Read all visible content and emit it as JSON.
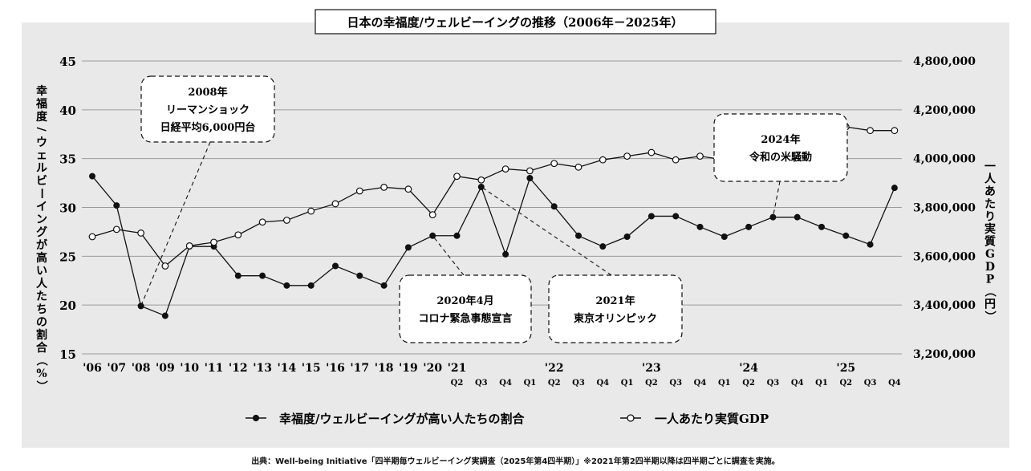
{
  "chart_data": {
    "type": "line",
    "title": "日本の幸福度/ウェルビーイングの推移（2006年－2025年）",
    "ylabel_left": "幸福度/ウェルビーイングが高い人たちの割合（%）",
    "ylabel_right": "一人あたり実質GDP（円）",
    "y_left_ticks": [
      "45",
      "40",
      "35",
      "30",
      "25",
      "20",
      "15"
    ],
    "y_left_range": [
      15,
      45
    ],
    "y_right_ticks": [
      "4,800,000",
      "4,200,000",
      "4,000,000",
      "3,800,000",
      "3,600,000",
      "3,400,000",
      "3,200,000"
    ],
    "y_right_range": [
      3200000,
      4800000
    ],
    "grid": true,
    "x_labels": [
      "'06",
      "'07",
      "'08",
      "'09",
      "'10",
      "'11",
      "'12",
      "'13",
      "'14",
      "'15",
      "'16",
      "'17",
      "'18",
      "'19",
      "'20",
      "'21",
      "",
      "",
      "",
      "'22",
      "",
      "",
      "",
      "'23",
      "",
      "",
      "",
      "'24",
      "",
      "",
      "",
      "'25",
      "",
      "",
      ""
    ],
    "x_quarters": [
      "",
      "",
      "",
      "",
      "",
      "",
      "",
      "",
      "",
      "",
      "",
      "",
      "",
      "",
      "",
      "Q2",
      "Q3",
      "Q4",
      "Q1",
      "Q2",
      "Q3",
      "Q4",
      "Q1",
      "Q2",
      "Q3",
      "Q4",
      "Q1",
      "Q2",
      "Q3",
      "Q4",
      "Q1",
      "Q2",
      "Q3",
      "Q4"
    ],
    "series": [
      {
        "name": "幸福度/ウェルビーイングが高い人たちの割合",
        "axis": "left",
        "marker": "filled",
        "values": [
          33.2,
          30.2,
          19.9,
          18.9,
          26.0,
          26.0,
          23.0,
          23.0,
          22.0,
          22.0,
          24.0,
          23.0,
          22.0,
          25.9,
          27.1,
          27.1,
          32.1,
          25.2,
          33.0,
          30.1,
          27.1,
          26.0,
          27.0,
          29.1,
          29.1,
          28.0,
          27.0,
          28.0,
          29.0,
          29.0,
          28.0,
          27.1,
          26.2,
          32.0
        ]
      },
      {
        "name": "一人あたり実質GDP",
        "axis": "right",
        "marker": "open",
        "values": [
          3840000,
          3880000,
          3860000,
          3680000,
          3790000,
          3810000,
          3850000,
          3920000,
          3930000,
          3980000,
          4020000,
          4090000,
          4110000,
          4100000,
          3960000,
          4170000,
          4150000,
          4210000,
          4200000,
          4240000,
          4220000,
          4260000,
          4280000,
          4300000,
          4260000,
          4280000,
          4260000,
          4290000,
          4340000,
          4380000,
          4420000,
          4440000,
          4420000,
          4420000
        ]
      }
    ],
    "annotations": [
      {
        "lines": [
          "2008年",
          "リーマンショック",
          "日経平均6,000円台"
        ]
      },
      {
        "lines": [
          "2020年4月",
          "コロナ緊急事態宣言"
        ]
      },
      {
        "lines": [
          "2021年",
          "東京オリンピック"
        ]
      },
      {
        "lines": [
          "2024年",
          "令和の米騒動"
        ]
      }
    ],
    "legend_placement": "bottom-center"
  },
  "source_note": "出典：Well-being Initiative「四半期毎ウェルビーイング実調査（2025年第4四半期）」※2021年第2四半期以降は四半期ごとに調査を実施。"
}
